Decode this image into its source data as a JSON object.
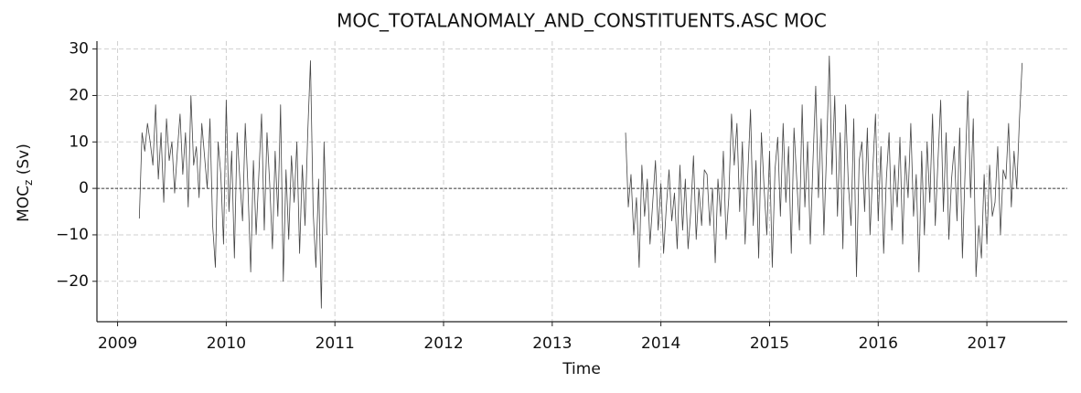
{
  "chart_data": {
    "type": "line",
    "title": "MOC_TOTALANOMALY_AND_CONSTITUENTS.ASC MOC",
    "xlabel": "Time",
    "ylabel": {
      "main": "MOC",
      "sub": "z",
      "unit": "(Sv)"
    },
    "color": "#444444",
    "grid": true,
    "reference_line": 0,
    "xlim": [
      2008.81,
      2017.74
    ],
    "xticks": [
      2009,
      2010,
      2011,
      2012,
      2013,
      2014,
      2015,
      2016,
      2017
    ],
    "ylim": [
      -28.7,
      31.7
    ],
    "yticks": [
      {
        "value": -20,
        "label": "−20"
      },
      {
        "value": -10,
        "label": "−10"
      },
      0,
      10,
      20,
      30
    ],
    "x": [
      2009.2,
      2009.225,
      2009.25,
      2009.275,
      2009.3,
      2009.325,
      2009.35,
      2009.375,
      2009.4,
      2009.425,
      2009.45,
      2009.475,
      2009.5,
      2009.525,
      2009.55,
      2009.575,
      2009.6,
      2009.625,
      2009.65,
      2009.675,
      2009.7,
      2009.725,
      2009.75,
      2009.775,
      2009.8,
      2009.825,
      2009.85,
      2009.875,
      2009.9,
      2009.925,
      2009.95,
      2009.975,
      2010,
      2010.025,
      2010.05,
      2010.075,
      2010.1,
      2010.125,
      2010.15,
      2010.175,
      2010.2,
      2010.225,
      2010.25,
      2010.275,
      2010.3,
      2010.325,
      2010.35,
      2010.375,
      2010.4,
      2010.425,
      2010.45,
      2010.475,
      2010.5,
      2010.525,
      2010.55,
      2010.575,
      2010.6,
      2010.625,
      2010.65,
      2010.675,
      2010.7,
      2010.725,
      2010.75,
      2010.775,
      2010.8,
      2010.825,
      2010.85,
      2010.875,
      2010.9,
      2010.925,
      2012,
      2013.675,
      2013.7,
      2013.725,
      2013.75,
      2013.775,
      2013.8,
      2013.825,
      2013.85,
      2013.875,
      2013.9,
      2013.925,
      2013.95,
      2013.975,
      2014,
      2014.025,
      2014.05,
      2014.075,
      2014.1,
      2014.125,
      2014.15,
      2014.175,
      2014.2,
      2014.225,
      2014.25,
      2014.275,
      2014.3,
      2014.325,
      2014.35,
      2014.375,
      2014.4,
      2014.425,
      2014.45,
      2014.475,
      2014.5,
      2014.525,
      2014.55,
      2014.575,
      2014.6,
      2014.625,
      2014.65,
      2014.675,
      2014.7,
      2014.725,
      2014.75,
      2014.775,
      2014.8,
      2014.825,
      2014.85,
      2014.875,
      2014.9,
      2014.925,
      2014.95,
      2014.975,
      2015,
      2015.025,
      2015.05,
      2015.075,
      2015.1,
      2015.125,
      2015.15,
      2015.175,
      2015.2,
      2015.225,
      2015.25,
      2015.275,
      2015.3,
      2015.325,
      2015.35,
      2015.375,
      2015.4,
      2015.425,
      2015.45,
      2015.475,
      2015.5,
      2015.525,
      2015.55,
      2015.575,
      2015.6,
      2015.625,
      2015.65,
      2015.675,
      2015.7,
      2015.725,
      2015.75,
      2015.775,
      2015.8,
      2015.825,
      2015.85,
      2015.875,
      2015.9,
      2015.925,
      2015.95,
      2015.975,
      2016,
      2016.025,
      2016.05,
      2016.075,
      2016.1,
      2016.125,
      2016.15,
      2016.175,
      2016.2,
      2016.225,
      2016.25,
      2016.275,
      2016.3,
      2016.325,
      2016.35,
      2016.375,
      2016.4,
      2016.425,
      2016.45,
      2016.475,
      2016.5,
      2016.525,
      2016.55,
      2016.575,
      2016.6,
      2016.625,
      2016.65,
      2016.675,
      2016.7,
      2016.725,
      2016.75,
      2016.775,
      2016.8,
      2016.825,
      2016.85,
      2016.875,
      2016.9,
      2016.925,
      2016.95,
      2016.975,
      2017,
      2017.025,
      2017.05,
      2017.075,
      2017.1,
      2017.125,
      2017.15,
      2017.175,
      2017.2,
      2017.225,
      2017.25,
      2017.275,
      2017.3,
      2017.325
    ],
    "values": [
      -6.5,
      12,
      8,
      14,
      10,
      5,
      18,
      2,
      12,
      -3,
      15,
      6,
      10,
      -1,
      8,
      16,
      3,
      12,
      -4,
      20,
      5,
      9,
      -2,
      14,
      7,
      0,
      15,
      -8,
      -17,
      10,
      3,
      -12,
      19,
      -5,
      8,
      -15,
      12,
      2,
      -7,
      14,
      0,
      -18,
      6,
      -10,
      3,
      16,
      -9,
      12,
      1,
      -13,
      8,
      -6,
      18,
      -20,
      4,
      -11,
      7,
      -3,
      10,
      -14,
      5,
      -8,
      12,
      27.5,
      -5,
      -17,
      2,
      -25.8,
      10,
      -10,
      null,
      12,
      -4,
      3,
      -10,
      -2,
      -17,
      5,
      -6,
      2,
      -12,
      -3,
      6,
      -9,
      1,
      -14,
      -4,
      4,
      -7,
      -1,
      -13,
      5,
      -9,
      2,
      -13,
      -5,
      7,
      -11,
      0,
      -8,
      4,
      3,
      -8,
      0,
      -16,
      2,
      -6,
      8,
      -11,
      -2,
      16,
      5,
      14,
      -5,
      10,
      -12,
      3,
      17,
      -8,
      6,
      -15,
      12,
      0,
      -10,
      8,
      -17,
      4,
      11,
      -6,
      14,
      -3,
      9,
      -14,
      13,
      2,
      -9,
      18,
      -4,
      10,
      -12,
      6,
      22,
      -2,
      15,
      -10,
      8,
      28.5,
      3,
      20,
      -6,
      12,
      -13,
      18,
      1,
      -8,
      15,
      -19,
      6,
      10,
      -5,
      13,
      -10,
      4,
      16,
      -7,
      9,
      -14,
      2,
      12,
      -9,
      5,
      -4,
      11,
      -12,
      7,
      -2,
      14,
      -6,
      3,
      -18,
      8,
      -10,
      10,
      -3,
      16,
      -8,
      6,
      19,
      -5,
      12,
      -11,
      2,
      9,
      -7,
      13,
      -15,
      4,
      21,
      -2,
      15,
      -19,
      -8,
      -15,
      3,
      -12,
      5,
      -6,
      -3,
      9,
      -10,
      4,
      2,
      14,
      -4,
      8,
      0,
      15,
      27
    ]
  }
}
